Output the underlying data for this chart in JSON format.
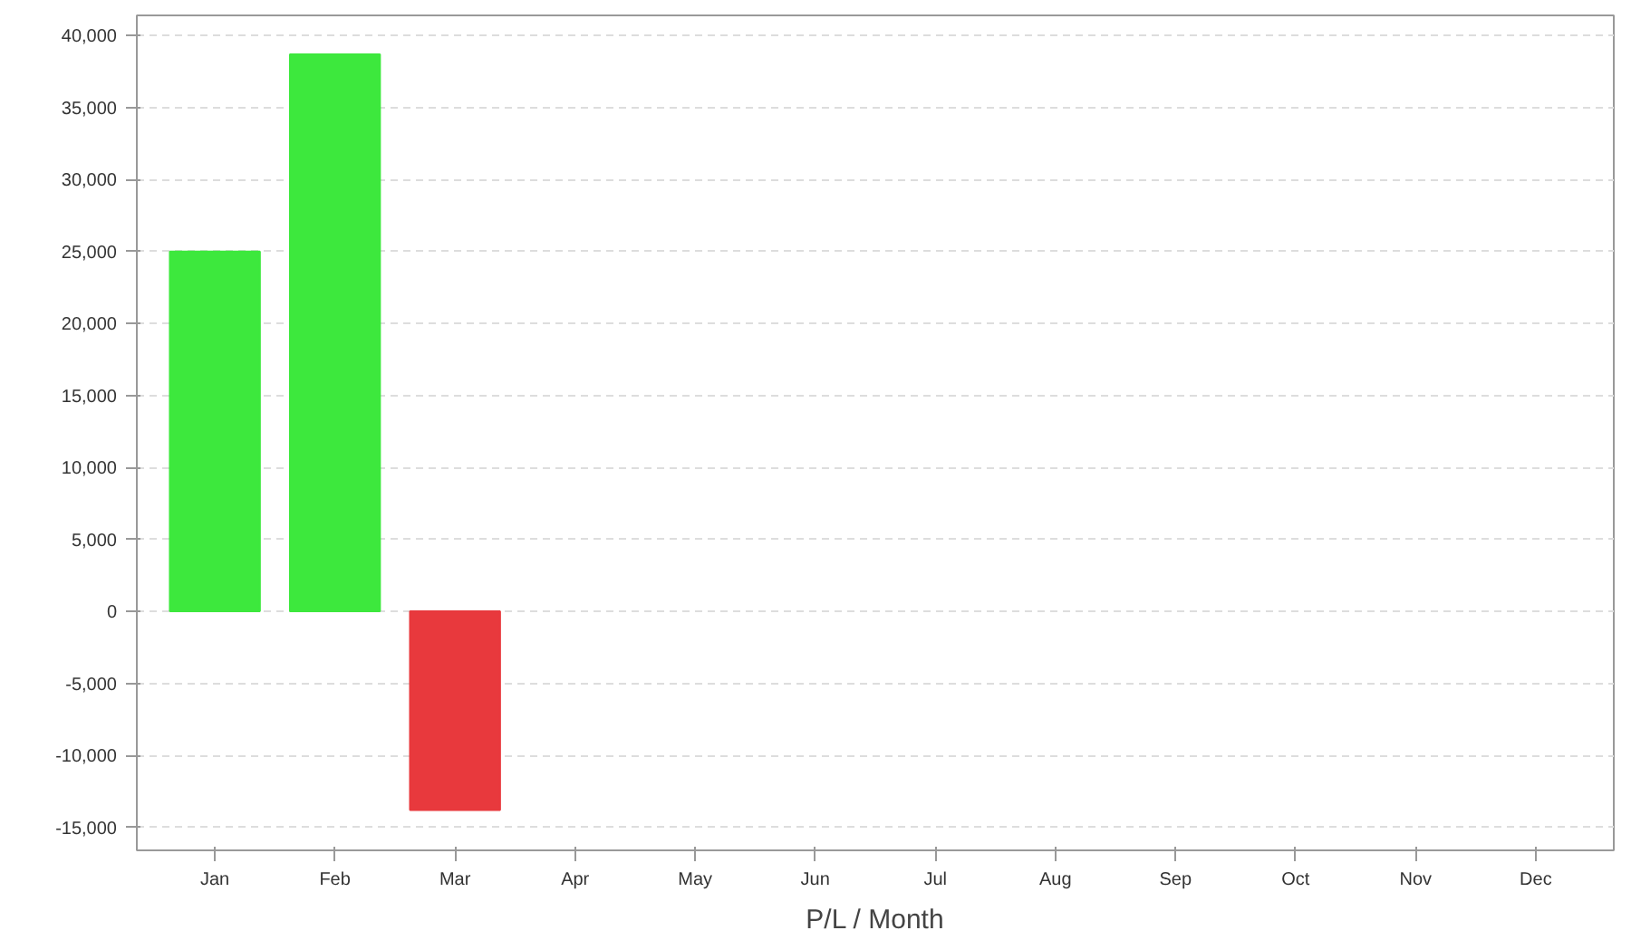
{
  "chart_data": {
    "type": "bar",
    "xlabel": "P/L / Month",
    "categories": [
      "Jan",
      "Feb",
      "Mar",
      "Apr",
      "May",
      "Jun",
      "Jul",
      "Aug",
      "Sep",
      "Oct",
      "Nov",
      "Dec"
    ],
    "values": [
      25000,
      38700,
      -13800,
      null,
      null,
      null,
      null,
      null,
      null,
      null,
      null,
      null
    ],
    "colors": [
      "#3de83d",
      "#3de83d",
      "#e8393d",
      null,
      null,
      null,
      null,
      null,
      null,
      null,
      null,
      null
    ],
    "ylim": [
      -16600,
      41400
    ],
    "yticks": [
      {
        "value": -15000,
        "label": "-15,000"
      },
      {
        "value": -10000,
        "label": "-10,000"
      },
      {
        "value": -5000,
        "label": "-5,000"
      },
      0,
      {
        "value": 5000,
        "label": "5,000"
      },
      {
        "value": 10000,
        "label": "10,000"
      },
      {
        "value": 15000,
        "label": "15,000"
      },
      {
        "value": 20000,
        "label": "20,000"
      },
      {
        "value": 25000,
        "label": "25,000"
      },
      {
        "value": 30000,
        "label": "30,000"
      },
      {
        "value": 35000,
        "label": "35,000"
      },
      {
        "value": 40000,
        "label": "40,000"
      }
    ],
    "grid": "y"
  }
}
